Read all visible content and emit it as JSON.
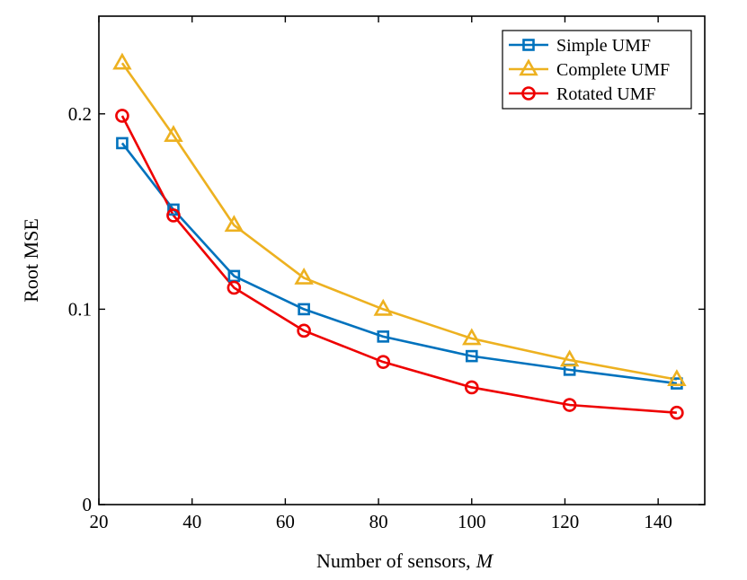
{
  "chart_data": {
    "type": "line",
    "title": "",
    "xlabel": "Number of sensors,",
    "xlabel_var": "M",
    "ylabel": "Root MSE",
    "xlim": [
      20,
      150
    ],
    "ylim": [
      0,
      0.25
    ],
    "x_ticks": [
      20,
      40,
      60,
      80,
      100,
      120,
      140
    ],
    "y_ticks": [
      0,
      0.1,
      0.2
    ],
    "y_tick_labels": [
      "0",
      "0.1",
      "0.2"
    ],
    "grid": false,
    "legend_position": "top-right",
    "x": [
      25,
      36,
      49,
      64,
      81,
      100,
      121,
      144
    ],
    "series": [
      {
        "name": "Simple UMF",
        "marker": "square",
        "color": "#0072BD",
        "values": [
          0.185,
          0.151,
          0.117,
          0.1,
          0.086,
          0.076,
          0.069,
          0.062
        ]
      },
      {
        "name": "Complete UMF",
        "marker": "triangle",
        "color": "#EDB120",
        "values": [
          0.226,
          0.189,
          0.143,
          0.116,
          0.1,
          0.085,
          0.074,
          0.064
        ]
      },
      {
        "name": "Rotated UMF",
        "marker": "circle",
        "color": "#EE0000",
        "values": [
          0.199,
          0.148,
          0.111,
          0.089,
          0.073,
          0.06,
          0.051,
          0.047
        ]
      }
    ]
  }
}
